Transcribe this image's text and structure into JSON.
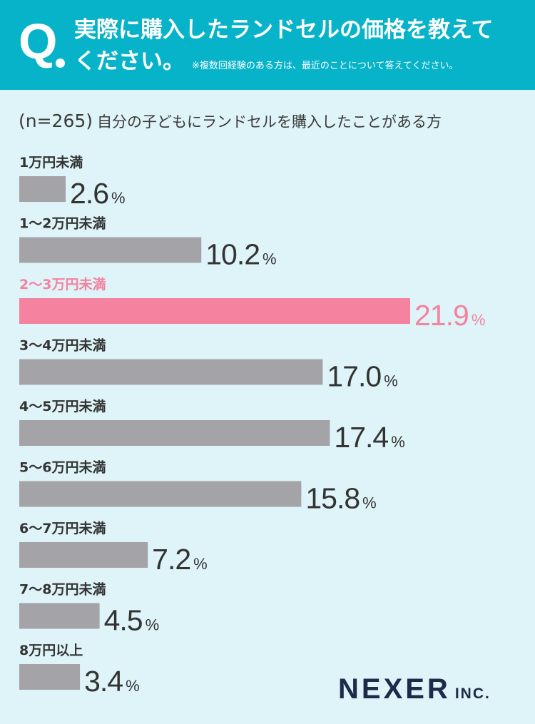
{
  "question": {
    "mark": "Q",
    "line1": "実際に購入したランドセルの価格を教えて",
    "line2": "ください。",
    "note": "※複数回経験のある方は、最近のことについて答えてください。"
  },
  "subtitle": {
    "sample": "(n=265)",
    "text": "自分の子どもにランドセルを購入したことがある方"
  },
  "logo": {
    "name": "NEXER",
    "suffix": "INC."
  },
  "colors": {
    "header": "#07b3c9",
    "background": "#dff4f8",
    "bar": "#a3a3a8",
    "highlight": "#f5829f",
    "text": "#333333"
  },
  "chart_data": {
    "type": "bar",
    "orientation": "horizontal",
    "unit": "%",
    "categories": [
      "1万円未満",
      "1〜2万円未満",
      "2〜3万円未満",
      "3〜4万円未満",
      "4〜5万円未満",
      "5〜6万円未満",
      "6〜7万円未満",
      "7〜8万円未満",
      "8万円以上"
    ],
    "values": [
      2.6,
      10.2,
      21.9,
      17.0,
      17.4,
      15.8,
      7.2,
      4.5,
      3.4
    ],
    "labels": [
      "2.6",
      "10.2",
      "21.9",
      "17.0",
      "17.4",
      "15.8",
      "7.2",
      "4.5",
      "3.4"
    ],
    "highlight_index": 2,
    "grid": false,
    "legend": "none"
  }
}
